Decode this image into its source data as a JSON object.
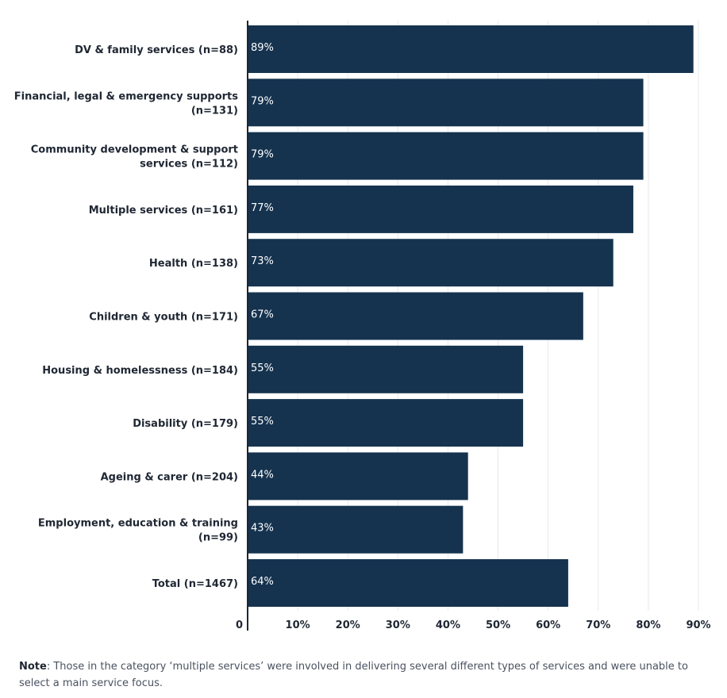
{
  "chart_data": {
    "type": "bar",
    "orientation": "horizontal",
    "categories": [
      [
        "DV & family services (n=88)"
      ],
      [
        "Financial, legal & emergency supports",
        "(n=131)"
      ],
      [
        "Community development & support",
        "services (n=112)"
      ],
      [
        "Multiple services (n=161)"
      ],
      [
        "Health (n=138)"
      ],
      [
        "Children & youth (n=171)"
      ],
      [
        "Housing & homelessness (n=184)"
      ],
      [
        "Disability (n=179)"
      ],
      [
        "Ageing & carer (n=204)"
      ],
      [
        "Employment, education & training",
        "(n=99)"
      ],
      [
        "Total (n=1467)"
      ]
    ],
    "values": [
      89,
      79,
      79,
      77,
      73,
      67,
      55,
      55,
      44,
      43,
      64
    ],
    "value_labels": [
      "89%",
      "79%",
      "79%",
      "77%",
      "73%",
      "67%",
      "55%",
      "55%",
      "44%",
      "43%",
      "64%"
    ],
    "xlim": [
      0,
      90
    ],
    "xticks": [
      0,
      10,
      20,
      30,
      40,
      50,
      60,
      70,
      80,
      90
    ],
    "xtick_labels": [
      "0",
      "10%",
      "20%",
      "30%",
      "40%",
      "50%",
      "60%",
      "70%",
      "80%",
      "90%"
    ],
    "bar_color": "#15334f",
    "grid": true
  },
  "note": {
    "label": "Note",
    "text": ": Those in the category ‘multiple services’ were involved in delivering several different types of services and were unable to select a main service focus."
  }
}
